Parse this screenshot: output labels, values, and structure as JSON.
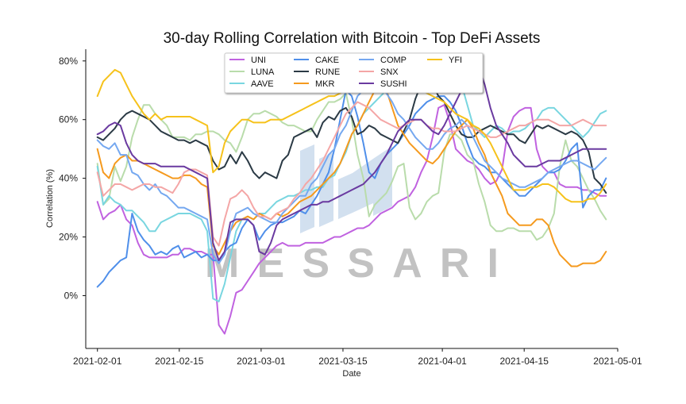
{
  "chart_data": {
    "type": "line",
    "title": "30-day Rolling Correlation with Bitcoin - Top DeFi Assets",
    "xlabel": "Date",
    "ylabel": "Correlation (%)",
    "x_ticks": [
      "2021-02-01",
      "2021-02-15",
      "2021-03-01",
      "2021-03-15",
      "2021-04-01",
      "2021-04-15",
      "2021-05-01"
    ],
    "y_ticks": [
      "0%",
      "20%",
      "40%",
      "60%",
      "80%"
    ],
    "y_tick_values": [
      0,
      20,
      40,
      60,
      80
    ],
    "ylim": [
      -18,
      84
    ],
    "xlim": [
      "2021-01-30",
      "2021-05-01"
    ],
    "grid": false,
    "legend_position": "top-center",
    "watermark": "MESSARI",
    "x_dates_start": "2021-02-01",
    "x_dates_end": "2021-04-29",
    "series": [
      {
        "name": "UNI",
        "color": "#c062e0",
        "values": [
          32,
          26,
          28,
          29,
          31,
          26,
          24,
          18,
          14,
          13,
          13,
          13,
          13,
          14,
          14,
          16,
          16,
          15,
          15,
          14,
          14,
          -10,
          -13,
          -7,
          1,
          2,
          5,
          8,
          11,
          13,
          15,
          17,
          18,
          17,
          17,
          17,
          18,
          18,
          18,
          18,
          19,
          20,
          20,
          21,
          22,
          23,
          23,
          24,
          26,
          28,
          29,
          30,
          32,
          33,
          34,
          37,
          42,
          46,
          54,
          64,
          65,
          59,
          50,
          48,
          46,
          45,
          43,
          40,
          38,
          39,
          43,
          56,
          61,
          63,
          64,
          64,
          50,
          44,
          42,
          42,
          38,
          37,
          37,
          37,
          36,
          36,
          35,
          34,
          34
        ]
      },
      {
        "name": "LUNA",
        "color": "#b9dcab",
        "values": [
          45,
          31,
          33,
          44,
          39,
          44,
          54,
          60,
          65,
          65,
          62,
          60,
          58,
          54,
          54,
          54,
          53,
          55,
          55,
          56,
          56,
          55,
          53,
          52,
          49,
          54,
          60,
          62,
          62,
          63,
          62,
          61,
          59,
          58,
          58,
          57,
          56,
          56,
          60,
          63,
          66,
          66,
          67,
          69,
          60,
          48,
          40,
          27,
          31,
          33,
          35,
          39,
          44,
          45,
          30,
          26,
          28,
          32,
          34,
          35,
          49,
          55,
          55,
          53,
          48,
          46,
          38,
          32,
          24,
          22,
          22,
          23,
          23,
          22,
          22,
          22,
          19,
          20,
          23,
          28,
          44,
          53,
          46,
          44,
          40,
          36,
          33,
          29,
          26
        ]
      },
      {
        "name": "AAVE",
        "color": "#79d6e0",
        "values": [
          44,
          31,
          34,
          32,
          31,
          29,
          29,
          27,
          25,
          22,
          22,
          25,
          26,
          27,
          28,
          28,
          28,
          27,
          26,
          22,
          -1,
          -2,
          4,
          13,
          22,
          26,
          27,
          26,
          28,
          28,
          30,
          32,
          33,
          34,
          34,
          35,
          36,
          36,
          37,
          37,
          40,
          41,
          45,
          49,
          55,
          58,
          62,
          64,
          66,
          68,
          70,
          72,
          75,
          76,
          76,
          76,
          77,
          78,
          78,
          78,
          80,
          80,
          81,
          72,
          65,
          58,
          56,
          54,
          56,
          58,
          57,
          55,
          56,
          56,
          57,
          59,
          60,
          63,
          64,
          64,
          62,
          60,
          58,
          56,
          54,
          56,
          59,
          62,
          63
        ]
      },
      {
        "name": "CAKE",
        "color": "#4f8fea",
        "values": [
          3,
          5,
          8,
          10,
          12,
          13,
          28,
          22,
          19,
          17,
          14,
          15,
          14,
          16,
          17,
          13,
          14,
          15,
          13,
          14,
          12,
          12,
          15,
          17,
          18,
          23,
          26,
          24,
          19,
          22,
          24,
          25,
          25,
          26,
          27,
          29,
          28,
          31,
          34,
          38,
          42,
          50,
          60,
          70,
          68,
          61,
          52,
          42,
          40,
          45,
          48,
          50,
          52,
          55,
          58,
          62,
          64,
          66,
          67,
          68,
          68,
          66,
          63,
          58,
          52,
          47,
          45,
          44,
          42,
          42,
          40,
          38,
          36,
          34,
          34,
          36,
          38,
          40,
          42,
          42,
          43,
          46,
          50,
          52,
          30,
          34,
          36,
          36,
          40
        ]
      },
      {
        "name": "RUNE",
        "color": "#2b3a45",
        "values": [
          54,
          53,
          55,
          57,
          60,
          62,
          63,
          62,
          61,
          60,
          58,
          56,
          55,
          54,
          53,
          53,
          52,
          53,
          52,
          51,
          46,
          43,
          44,
          48,
          45,
          49,
          46,
          42,
          40,
          42,
          41,
          40,
          46,
          48,
          54,
          55,
          56,
          57,
          54,
          59,
          61,
          60,
          63,
          64,
          61,
          55,
          56,
          58,
          57,
          55,
          54,
          53,
          52,
          56,
          60,
          67,
          72,
          73,
          72,
          68,
          66,
          62,
          58,
          55,
          54,
          54,
          56,
          57,
          58,
          57,
          56,
          55,
          55,
          53,
          52,
          55,
          58,
          57,
          58,
          57,
          56,
          55,
          56,
          55,
          53,
          49,
          40,
          38,
          35
        ]
      },
      {
        "name": "MKR",
        "color": "#f59a1e",
        "values": [
          50,
          42,
          40,
          45,
          47,
          48,
          46,
          46,
          45,
          44,
          43,
          42,
          41,
          40,
          40,
          41,
          41,
          40,
          38,
          37,
          17,
          14,
          18,
          22,
          25,
          26,
          27,
          26,
          28,
          27,
          26,
          28,
          27,
          28,
          30,
          32,
          33,
          34,
          36,
          38,
          40,
          42,
          45,
          50,
          55,
          58,
          62,
          66,
          70,
          72,
          70,
          64,
          58,
          55,
          52,
          50,
          48,
          46,
          45,
          47,
          50,
          53,
          56,
          58,
          60,
          57,
          52,
          48,
          42,
          38,
          34,
          28,
          26,
          24,
          24,
          24,
          26,
          26,
          24,
          18,
          14,
          12,
          10,
          10,
          11,
          11,
          11,
          12,
          15
        ]
      },
      {
        "name": "COMP",
        "color": "#75a8f0",
        "values": [
          53,
          51,
          50,
          52,
          48,
          48,
          42,
          41,
          38,
          36,
          38,
          35,
          34,
          32,
          30,
          30,
          29,
          28,
          27,
          26,
          14,
          11,
          14,
          22,
          28,
          29,
          30,
          28,
          27,
          26,
          25,
          25,
          28,
          30,
          32,
          34,
          34,
          38,
          40,
          44,
          48,
          50,
          55,
          58,
          63,
          68,
          70,
          72,
          72,
          70,
          69,
          66,
          62,
          60,
          57,
          54,
          52,
          50,
          50,
          52,
          55,
          57,
          58,
          60,
          58,
          54,
          50,
          46,
          44,
          42,
          40,
          39,
          38,
          37,
          37,
          38,
          39,
          40,
          42,
          43,
          44,
          45,
          46,
          46,
          45,
          44,
          43,
          45,
          47
        ]
      },
      {
        "name": "SNX",
        "color": "#f4a6a6",
        "values": [
          42,
          34,
          36,
          38,
          38,
          37,
          36,
          37,
          38,
          38,
          37,
          37,
          36,
          35,
          38,
          42,
          43,
          43,
          42,
          41,
          20,
          17,
          26,
          33,
          34,
          36,
          34,
          30,
          27,
          27,
          26,
          28,
          29,
          30,
          33,
          35,
          38,
          40,
          43,
          46,
          50,
          54,
          58,
          62,
          64,
          66,
          65,
          64,
          62,
          60,
          59,
          58,
          57,
          58,
          59,
          60,
          60,
          58,
          57,
          57,
          56,
          56,
          56,
          57,
          58,
          57,
          56,
          55,
          54,
          54,
          55,
          56,
          57,
          58,
          58,
          59,
          60,
          60,
          60,
          59,
          58,
          58,
          58,
          59,
          60,
          59,
          58,
          58,
          58
        ]
      },
      {
        "name": "SUSHI",
        "color": "#6a3aa0",
        "values": [
          55,
          56,
          58,
          59,
          58,
          52,
          48,
          46,
          45,
          45,
          45,
          44,
          44,
          44,
          44,
          44,
          43,
          42,
          41,
          40,
          18,
          12,
          15,
          25,
          26,
          26,
          26,
          24,
          15,
          14,
          18,
          24,
          26,
          27,
          28,
          29,
          30,
          31,
          31,
          32,
          32,
          33,
          34,
          35,
          36,
          37,
          38,
          40,
          42,
          45,
          48,
          52,
          56,
          58,
          60,
          60,
          60,
          58,
          56,
          55,
          58,
          62,
          66,
          70,
          74,
          76,
          78,
          72,
          64,
          58,
          55,
          52,
          48,
          46,
          44,
          44,
          44,
          45,
          46,
          46,
          46,
          47,
          48,
          49,
          50,
          50,
          50,
          50,
          50
        ]
      },
      {
        "name": "YFI",
        "color": "#f6c21b",
        "values": [
          68,
          73,
          75,
          77,
          76,
          72,
          68,
          65,
          62,
          60,
          62,
          60,
          61,
          61,
          61,
          61,
          61,
          60,
          59,
          58,
          42,
          44,
          52,
          56,
          58,
          60,
          60,
          59,
          59,
          59,
          60,
          60,
          60,
          61,
          62,
          63,
          64,
          65,
          66,
          67,
          68,
          68,
          69,
          70,
          71,
          72,
          73,
          74,
          75,
          76,
          76,
          76,
          75,
          74,
          73,
          72,
          70,
          69,
          68,
          67,
          66,
          64,
          62,
          61,
          60,
          58,
          57,
          55,
          52,
          48,
          44,
          40,
          36,
          36,
          36,
          37,
          37,
          38,
          38,
          37,
          35,
          33,
          32,
          32,
          32,
          33,
          33,
          35,
          38
        ]
      }
    ]
  }
}
